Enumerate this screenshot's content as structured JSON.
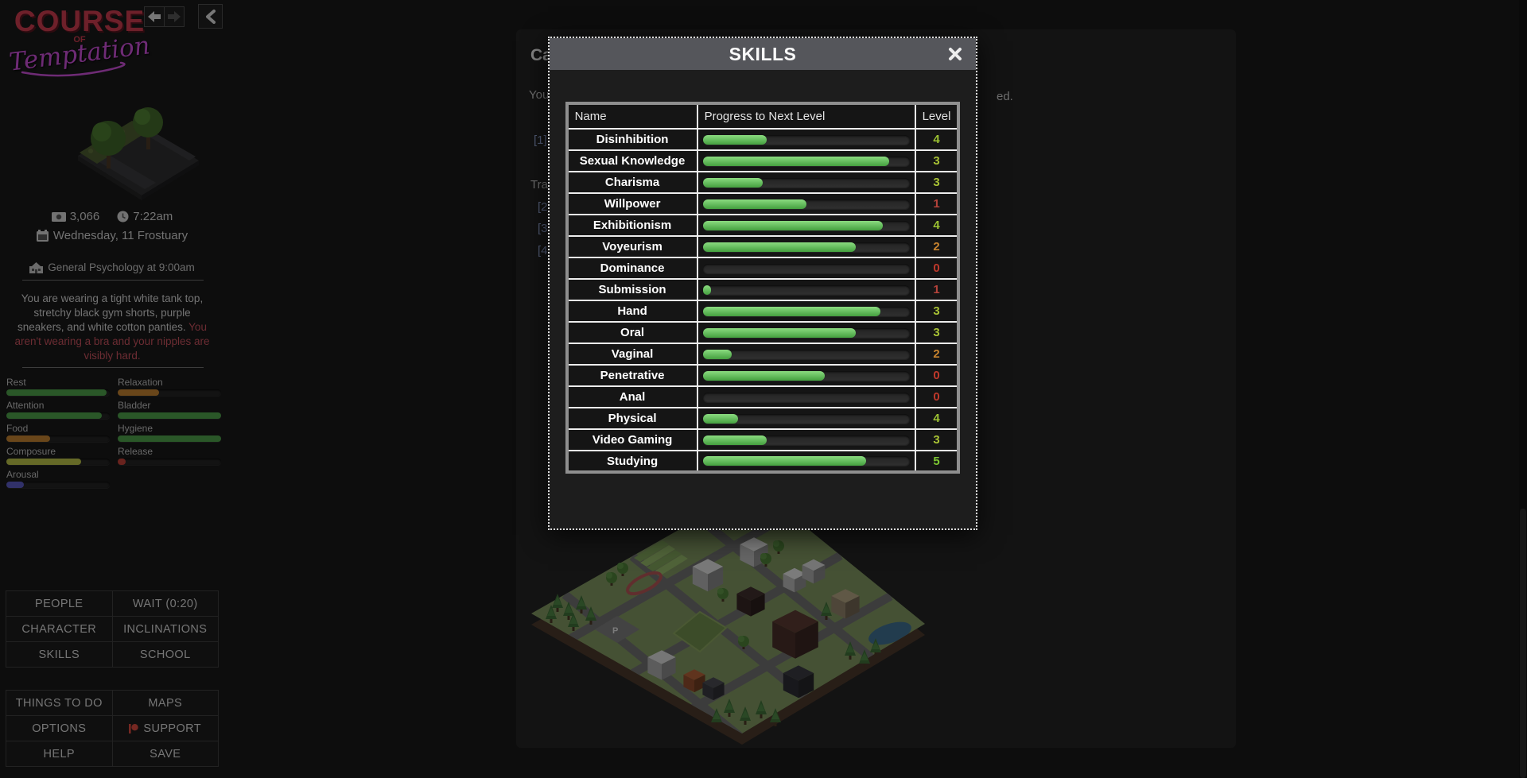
{
  "sidebar": {
    "logo": {
      "line1": "COURSE",
      "line2": "OF",
      "line3": "Temptation"
    },
    "status": {
      "money": "3,066",
      "time": "7:22am",
      "date": "Wednesday, 11 Frostuary",
      "next_class": "General Psychology at 9:00am"
    },
    "wearing": {
      "normal": "You are wearing a tight white tank top, stretchy black gym shorts, purple sneakers, and white cotton panties. ",
      "alert": "You aren't wearing a bra and your nipples are visibly hard."
    },
    "meters": [
      {
        "label": "Rest",
        "pct": 97,
        "color": "#4e9e4a"
      },
      {
        "label": "Relaxation",
        "pct": 40,
        "color": "#c08030"
      },
      {
        "label": "Attention",
        "pct": 92,
        "color": "#4e9e4a"
      },
      {
        "label": "Bladder",
        "pct": 100,
        "color": "#4e9e4a"
      },
      {
        "label": "Food",
        "pct": 42,
        "color": "#c08030"
      },
      {
        "label": "Hygiene",
        "pct": 100,
        "color": "#4e9e4a"
      },
      {
        "label": "Composure",
        "pct": 72,
        "color": "#b8c048"
      },
      {
        "label": "Release",
        "pct": 8,
        "color": "#c04038"
      },
      {
        "label": "Arousal",
        "pct": 17,
        "color": "#5a5ac0"
      }
    ],
    "buttons_primary": [
      {
        "label": "PEOPLE"
      },
      {
        "label": "WAIT (0:20)"
      },
      {
        "label": "CHARACTER"
      },
      {
        "label": "INCLINATIONS"
      },
      {
        "label": "SKILLS"
      },
      {
        "label": "SCHOOL"
      }
    ],
    "buttons_secondary": [
      {
        "label": "THINGS TO DO"
      },
      {
        "label": "MAPS"
      },
      {
        "label": "OPTIONS"
      },
      {
        "label": "SUPPORT",
        "icon": "patreon"
      },
      {
        "label": "HELP"
      },
      {
        "label": "SAVE"
      }
    ]
  },
  "main": {
    "fragments": {
      "heading": "Ca",
      "line1_left": "You",
      "line1_right": "ed.",
      "link1": "[1]",
      "line2_left": "Tra",
      "link2": "[2]",
      "link3": "[3]",
      "link4": "[4]"
    }
  },
  "modal": {
    "title": "SKILLS",
    "table": {
      "headers": [
        "Name",
        "Progress to Next Level",
        "Level"
      ],
      "rows": [
        {
          "name": "Disinhibition",
          "progress": 31,
          "level": "4",
          "color": "#9cc232"
        },
        {
          "name": "Sexual Knowledge",
          "progress": 90,
          "level": "3",
          "color": "#a8c235"
        },
        {
          "name": "Charisma",
          "progress": 29,
          "level": "3",
          "color": "#a8c235"
        },
        {
          "name": "Willpower",
          "progress": 50,
          "level": "1",
          "color": "#b5433b"
        },
        {
          "name": "Exhibitionism",
          "progress": 87,
          "level": "4",
          "color": "#9cc232"
        },
        {
          "name": "Voyeurism",
          "progress": 74,
          "level": "2",
          "color": "#c8832e"
        },
        {
          "name": "Dominance",
          "progress": 0,
          "level": "0",
          "color": "#c0392b"
        },
        {
          "name": "Submission",
          "progress": 4,
          "level": "1",
          "color": "#b5433b"
        },
        {
          "name": "Hand",
          "progress": 86,
          "level": "3",
          "color": "#a8c235"
        },
        {
          "name": "Oral",
          "progress": 74,
          "level": "3",
          "color": "#a8c235"
        },
        {
          "name": "Vaginal",
          "progress": 14,
          "level": "2",
          "color": "#c8832e"
        },
        {
          "name": "Penetrative",
          "progress": 59,
          "level": "0",
          "color": "#c0392b"
        },
        {
          "name": "Anal",
          "progress": 0,
          "level": "0",
          "color": "#c0392b"
        },
        {
          "name": "Physical",
          "progress": 17,
          "level": "4",
          "color": "#9cc232"
        },
        {
          "name": "Video Gaming",
          "progress": 31,
          "level": "3",
          "color": "#a8c235"
        },
        {
          "name": "Studying",
          "progress": 79,
          "level": "5",
          "color": "#7dc832"
        }
      ]
    }
  }
}
